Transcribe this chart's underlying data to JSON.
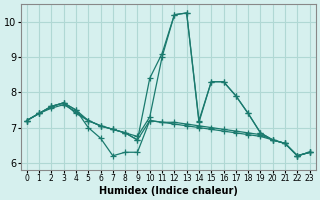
{
  "title": "",
  "xlabel": "Humidex (Indice chaleur)",
  "ylabel": "",
  "bg_color": "#d6f0ee",
  "grid_color": "#b0d8d4",
  "line_color": "#1a7a6e",
  "x_values": [
    0,
    1,
    2,
    3,
    4,
    5,
    6,
    7,
    8,
    9,
    10,
    11,
    12,
    13,
    14,
    15,
    16,
    17,
    18,
    19,
    20,
    21,
    22,
    23
  ],
  "series": [
    [
      7.2,
      7.4,
      7.6,
      7.7,
      7.5,
      7.0,
      6.7,
      6.2,
      6.3,
      6.3,
      7.2,
      7.15,
      7.15,
      7.1,
      7.05,
      7.0,
      6.95,
      6.9,
      6.85,
      6.8,
      6.65,
      6.55,
      6.2,
      6.3
    ],
    [
      7.2,
      7.4,
      7.6,
      7.7,
      7.4,
      7.2,
      7.05,
      6.95,
      6.85,
      6.75,
      7.3,
      9.0,
      10.2,
      10.25,
      7.2,
      8.3,
      8.3,
      7.9,
      7.4,
      6.85,
      6.65,
      6.55,
      6.2,
      6.3
    ],
    [
      7.2,
      7.4,
      7.6,
      7.7,
      7.5,
      7.2,
      7.05,
      6.95,
      6.85,
      6.65,
      8.4,
      9.1,
      10.2,
      10.25,
      7.15,
      8.3,
      8.3,
      7.9,
      7.4,
      6.85,
      6.65,
      6.55,
      6.2,
      6.3
    ],
    [
      7.2,
      7.4,
      7.55,
      7.65,
      7.45,
      7.2,
      7.05,
      6.95,
      6.85,
      6.65,
      7.2,
      7.15,
      7.1,
      7.05,
      7.0,
      6.95,
      6.9,
      6.85,
      6.8,
      6.75,
      6.65,
      6.55,
      6.2,
      6.3
    ]
  ],
  "xlim": [
    -0.5,
    23.5
  ],
  "ylim": [
    5.8,
    10.5
  ],
  "yticks": [
    6,
    7,
    8,
    9,
    10
  ],
  "xticks": [
    0,
    1,
    2,
    3,
    4,
    5,
    6,
    7,
    8,
    9,
    10,
    11,
    12,
    13,
    14,
    15,
    16,
    17,
    18,
    19,
    20,
    21,
    22,
    23
  ],
  "xtick_labels": [
    "0",
    "1",
    "2",
    "3",
    "4",
    "5",
    "6",
    "7",
    "8",
    "9",
    "10",
    "11",
    "12",
    "13",
    "14",
    "15",
    "16",
    "17",
    "18",
    "19",
    "20",
    "21",
    "22",
    "23"
  ]
}
